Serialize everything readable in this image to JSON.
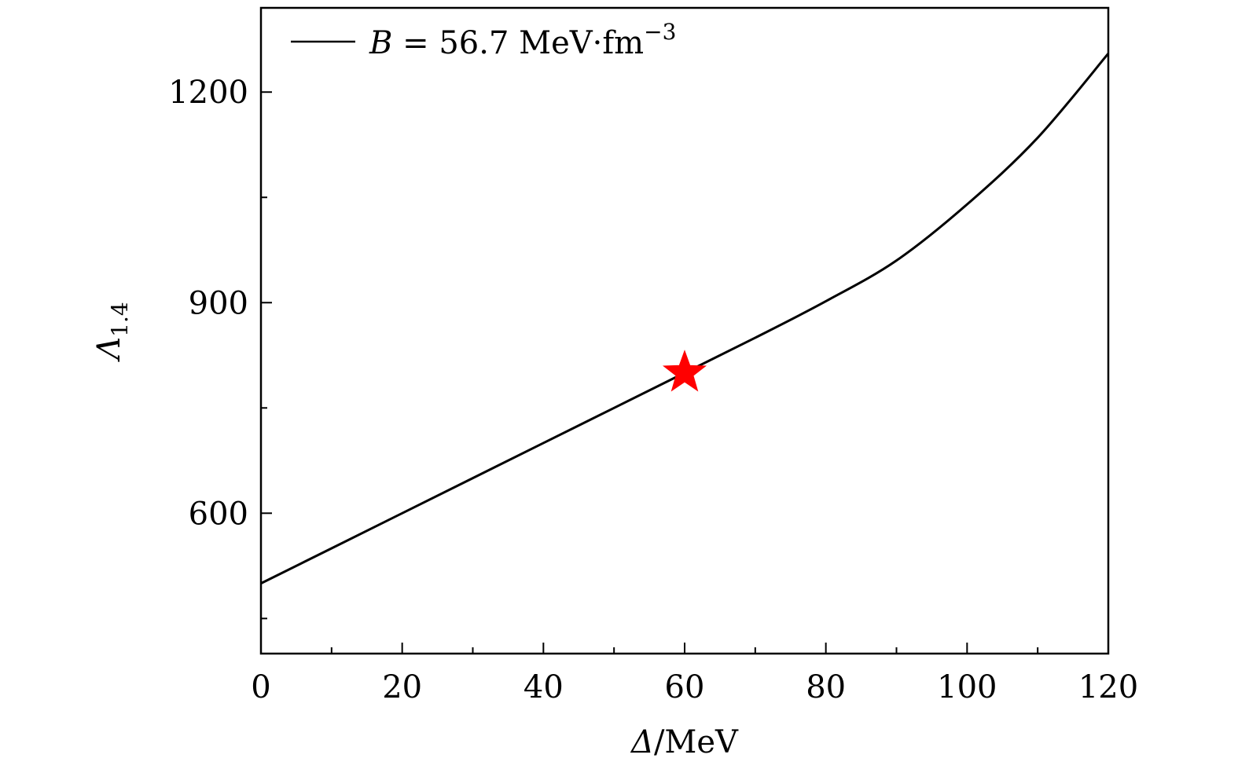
{
  "chart_data": {
    "type": "line",
    "xlabel": {
      "symbol": "Δ",
      "unit": "/MeV"
    },
    "ylabel": {
      "symbol": "Λ",
      "subscript": "1.4"
    },
    "xlim": [
      0,
      120
    ],
    "ylim": [
      400,
      1320
    ],
    "x_ticks": [
      0,
      20,
      40,
      60,
      80,
      100,
      120
    ],
    "x_tick_labels": [
      "0",
      "20",
      "40",
      "60",
      "80",
      "100",
      "120"
    ],
    "x_minor_ticks": [
      10,
      30,
      50,
      70,
      90,
      110
    ],
    "y_ticks": [
      600,
      900,
      1200
    ],
    "y_tick_labels": [
      "600",
      "900",
      "1200"
    ],
    "y_minor_ticks": [
      450,
      750,
      1050
    ],
    "grid": false,
    "legend_position": "top-left",
    "series": [
      {
        "name": "B = 56.7 MeV·fm^-3",
        "legend": {
          "symbol": "B",
          "equals": " = ",
          "value": "56.7 MeV·fm",
          "superscript": "−3"
        },
        "color": "#000000",
        "x": [
          0,
          10,
          20,
          30,
          40,
          50,
          60,
          70,
          80,
          90,
          100,
          110,
          120
        ],
        "y": [
          500,
          550,
          600,
          650,
          700,
          750,
          800,
          850,
          902,
          960,
          1040,
          1135,
          1255
        ]
      }
    ],
    "markers": [
      {
        "shape": "star",
        "color": "#ff0000",
        "x": 60,
        "y": 800
      }
    ]
  }
}
